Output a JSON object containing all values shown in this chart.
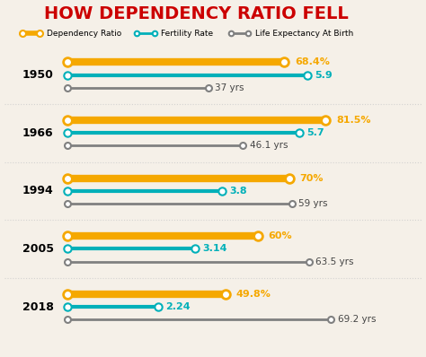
{
  "title": "HOW DEPENDENCY RATIO FELL",
  "title_color": "#CC0000",
  "background_color": "#f5f0e8",
  "years": [
    1950,
    1966,
    1994,
    2005,
    2018
  ],
  "dependency_ratio": [
    68.4,
    81.5,
    70.0,
    60.0,
    49.8
  ],
  "dependency_labels": [
    "68.4%",
    "81.5%",
    "70%",
    "60%",
    "49.8%"
  ],
  "fertility_rate": [
    5.9,
    5.7,
    3.8,
    3.14,
    2.24
  ],
  "fertility_labels": [
    "5.9",
    "5.7",
    "3.8",
    "3.14",
    "2.24"
  ],
  "life_expectancy": [
    37,
    46.1,
    59,
    63.5,
    69.2
  ],
  "life_expectancy_labels": [
    "37 yrs",
    "46.1 yrs",
    "59 yrs",
    "63.5 yrs",
    "69.2 yrs"
  ],
  "dep_color": "#F5A800",
  "fert_color": "#00B0B9",
  "life_color": "#808080",
  "dep_max": 81.5,
  "fert_max": 5.9,
  "life_max": 69.2,
  "legend_items": [
    "Dependency Ratio",
    "Fertility Rate",
    "Life Expectancy At Birth"
  ]
}
